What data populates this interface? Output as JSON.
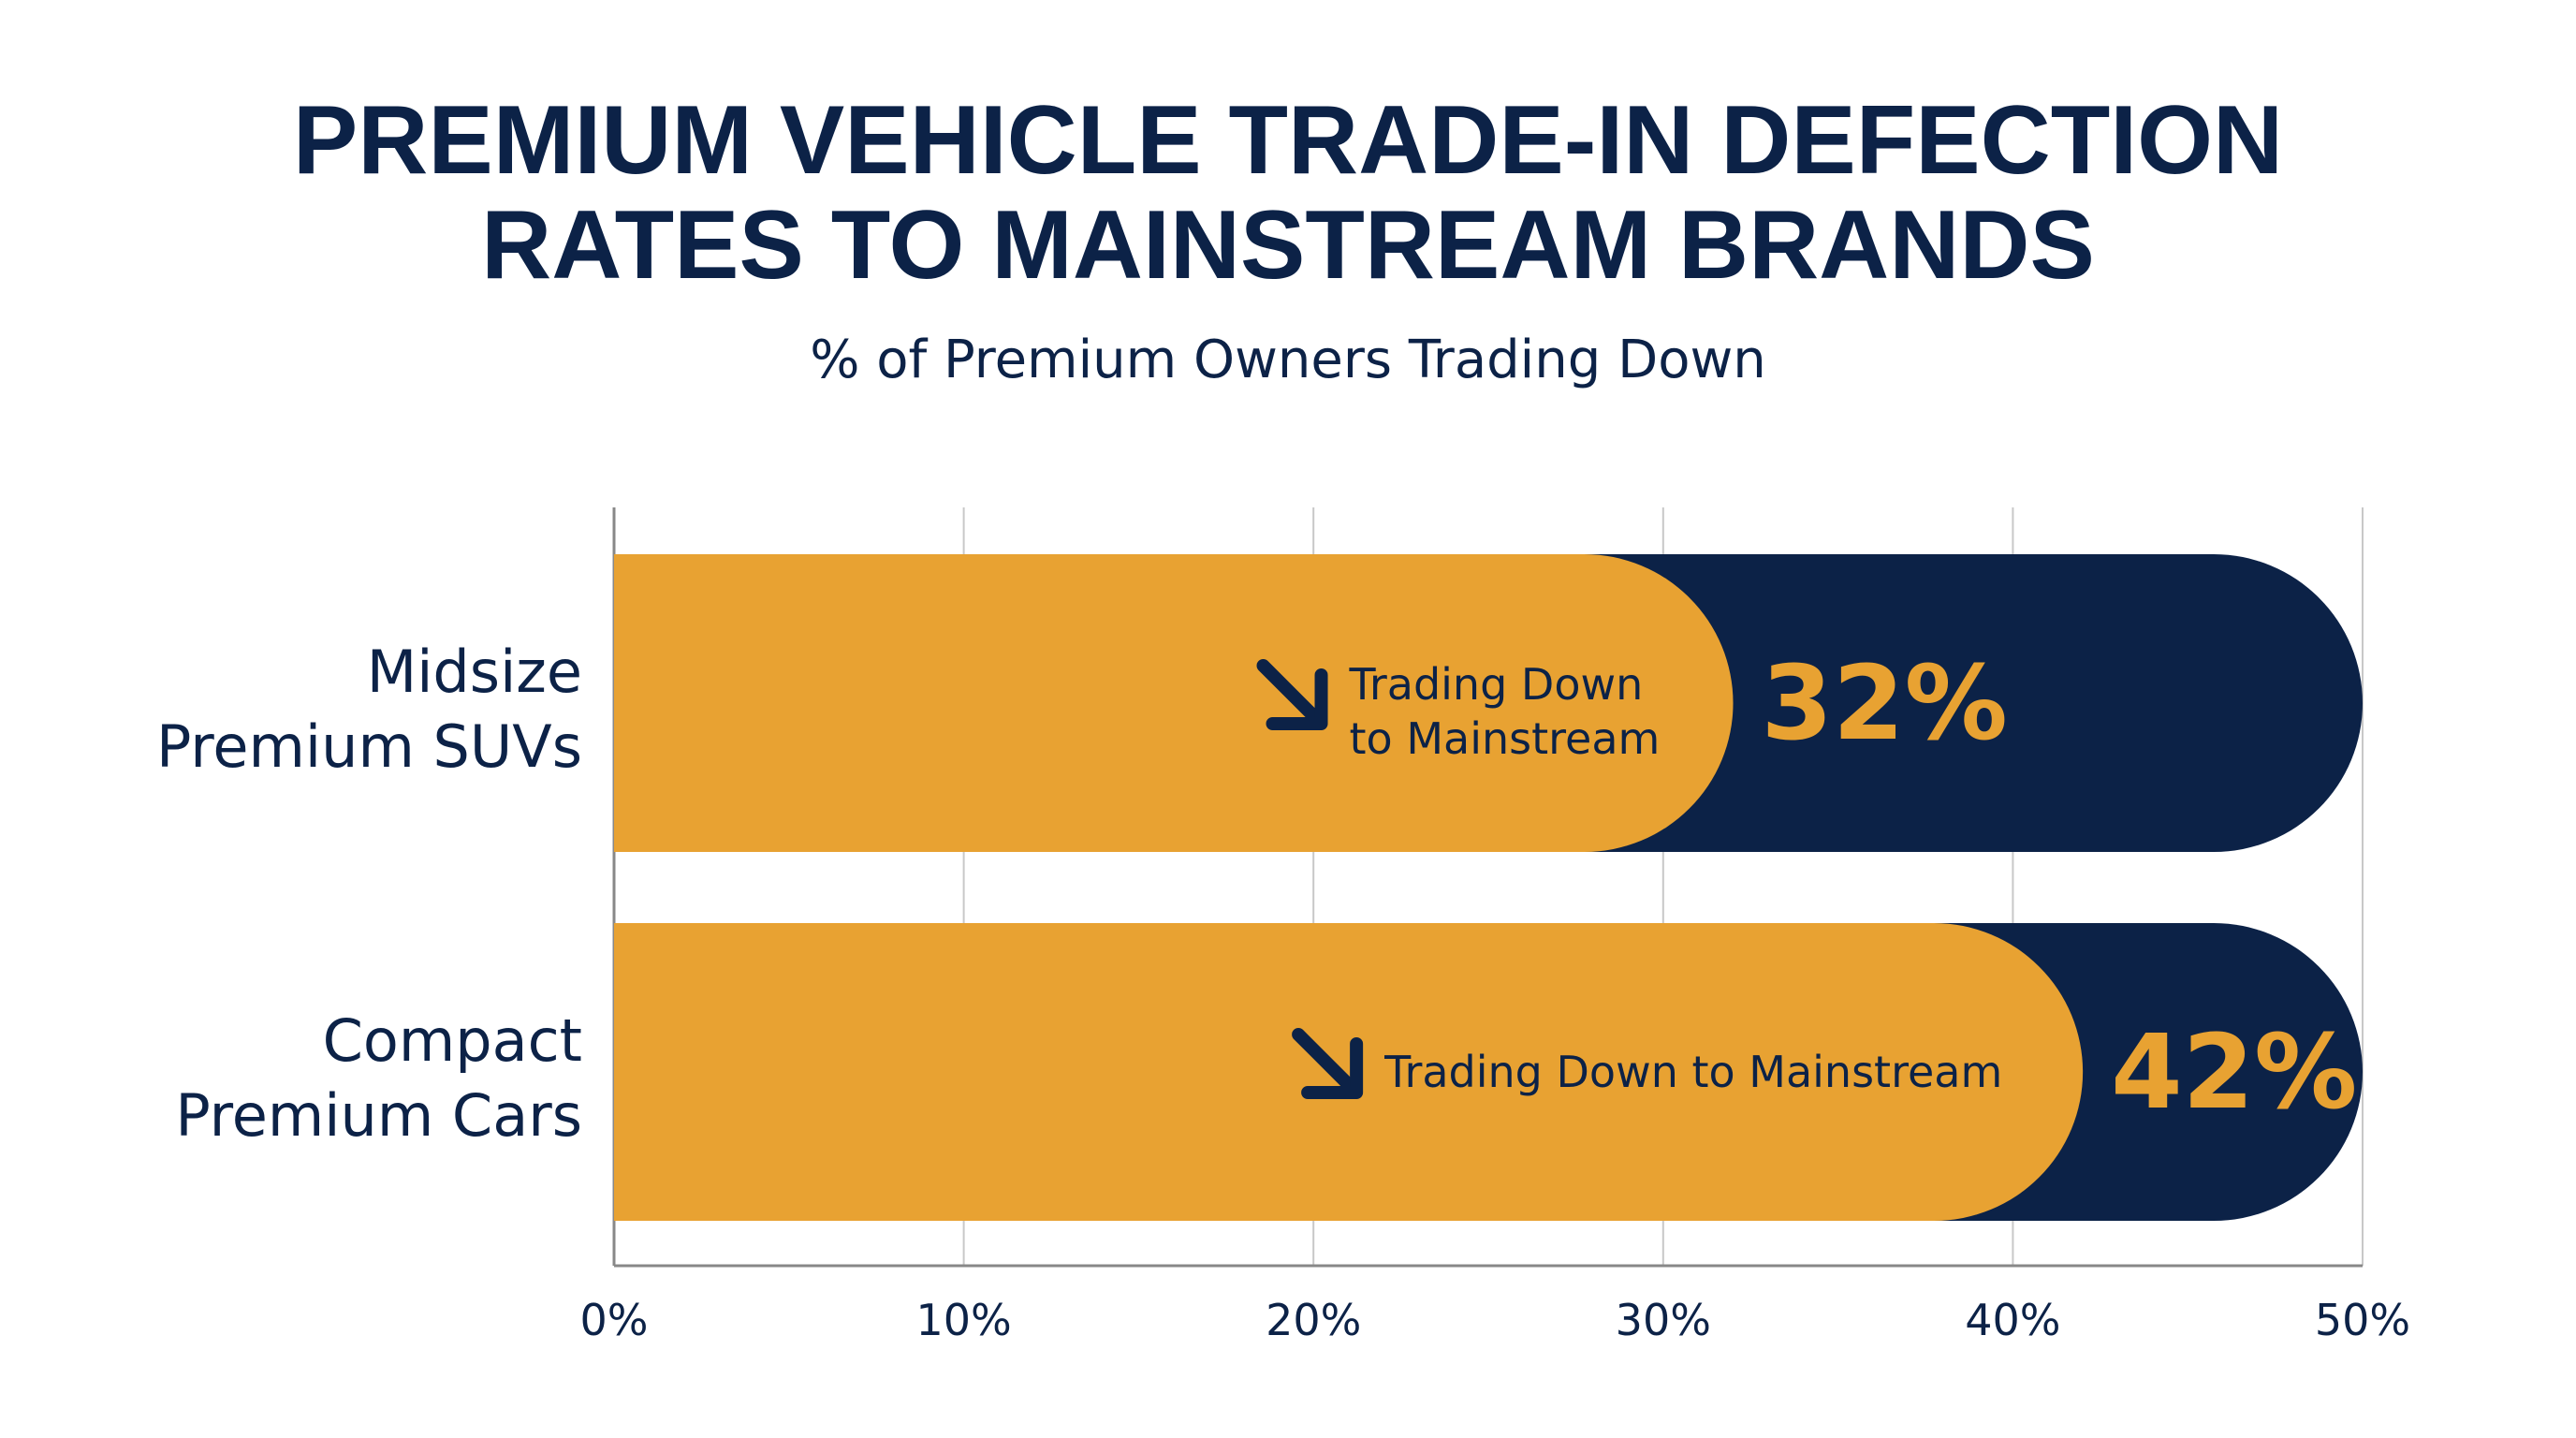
{
  "chart_data": {
    "type": "bar",
    "orientation": "horizontal",
    "title_lines": [
      "PREMIUM VEHICLE TRADE-IN DEFECTION",
      "RATES TO MAINSTREAM BRANDS"
    ],
    "subtitle": "% of Premium Owners Trading Down",
    "categories": [
      {
        "lines": [
          "Midsize",
          "Premium SUVs"
        ]
      },
      {
        "lines": [
          "Compact",
          "Premium Cars"
        ]
      }
    ],
    "values": [
      32,
      42
    ],
    "value_labels": [
      "32%",
      "42%"
    ],
    "annotations": [
      {
        "lines": [
          "Trading Down",
          "to Mainstream"
        ]
      },
      {
        "lines": [
          "Trading Down to Mainstream"
        ]
      }
    ],
    "xlim": [
      0,
      50
    ],
    "x_ticks": [
      0,
      10,
      20,
      30,
      40,
      50
    ],
    "x_tick_labels": [
      "0%",
      "10%",
      "20%",
      "30%",
      "40%",
      "50%"
    ],
    "grid": true,
    "colors": {
      "value_bar": "#e8a232",
      "track": "#0c2247",
      "text": "#0c2247",
      "grid": "#c8c8c8"
    },
    "icon": "arrow-down-right-icon"
  }
}
